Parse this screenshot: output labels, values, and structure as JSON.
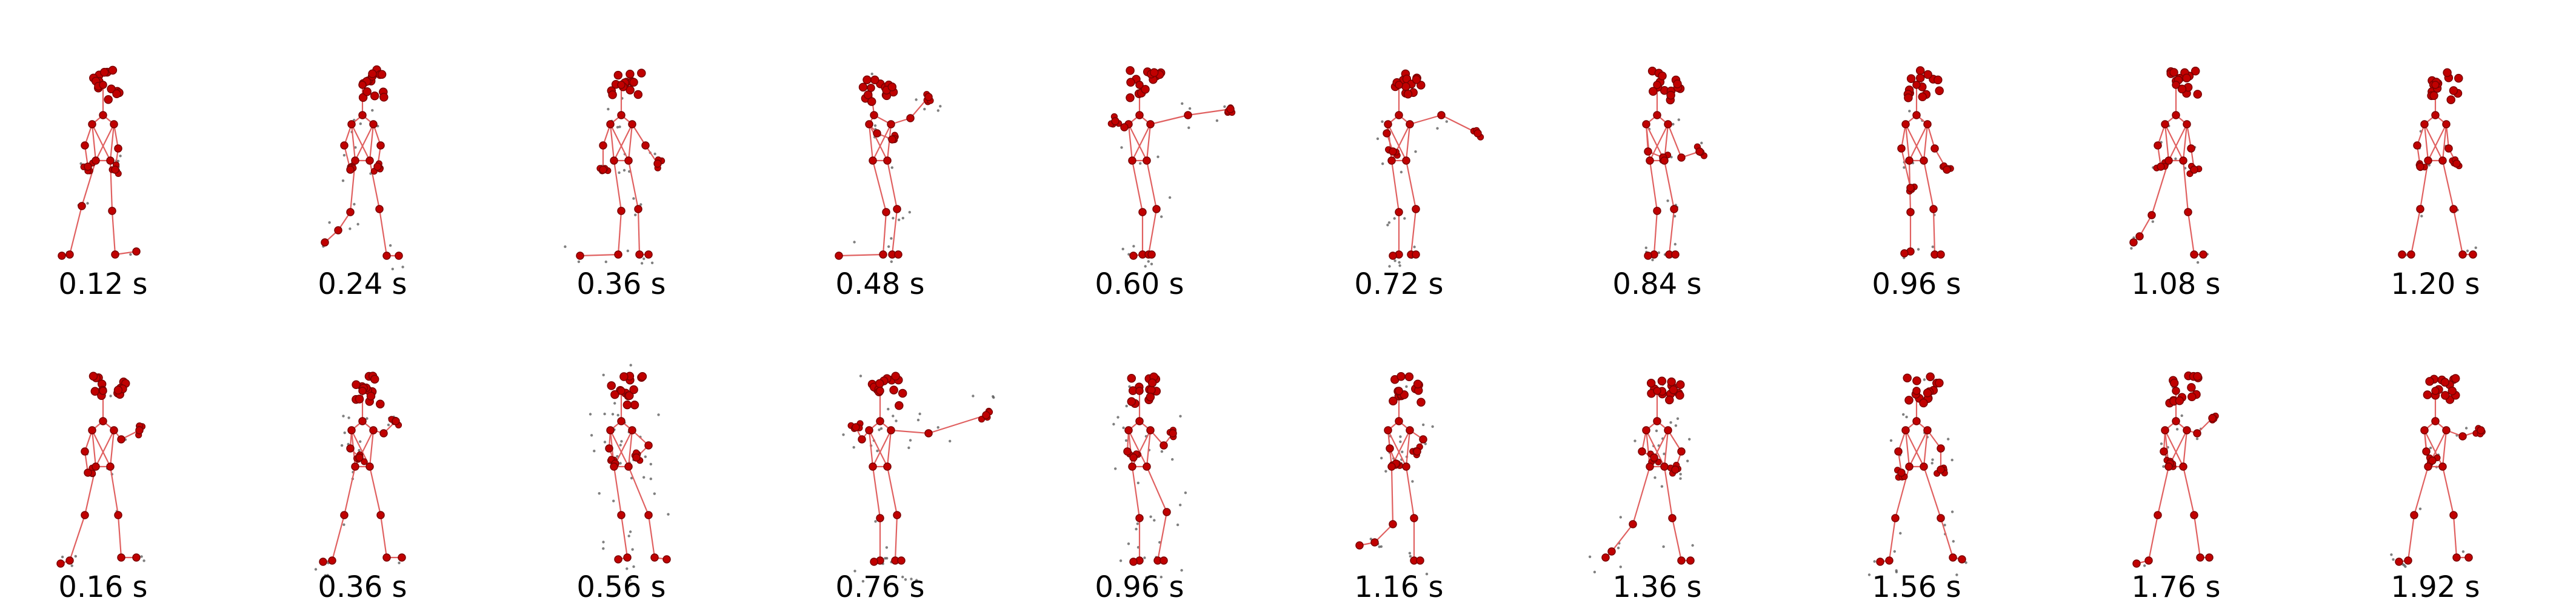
{
  "figure": {
    "rows": [
      {
        "frames": [
          {
            "time_label": "0.12 s"
          },
          {
            "time_label": "0.24 s"
          },
          {
            "time_label": "0.36 s"
          },
          {
            "time_label": "0.48 s"
          },
          {
            "time_label": "0.60 s"
          },
          {
            "time_label": "0.72 s"
          },
          {
            "time_label": "0.84 s"
          },
          {
            "time_label": "0.96 s"
          },
          {
            "time_label": "1.08 s"
          },
          {
            "time_label": "1.20 s"
          }
        ]
      },
      {
        "frames": [
          {
            "time_label": "0.16 s"
          },
          {
            "time_label": "0.36 s"
          },
          {
            "time_label": "0.56 s"
          },
          {
            "time_label": "0.76 s"
          },
          {
            "time_label": "0.96 s"
          },
          {
            "time_label": "1.16 s"
          },
          {
            "time_label": "1.36 s"
          },
          {
            "time_label": "1.56 s"
          },
          {
            "time_label": "1.76 s"
          },
          {
            "time_label": "1.92 s"
          }
        ]
      }
    ],
    "colors": {
      "joint": "#c00000",
      "joint_edge": "#7a0000",
      "bone": "#e06060",
      "noise": "#4a4a4a",
      "label": "#000000"
    }
  }
}
